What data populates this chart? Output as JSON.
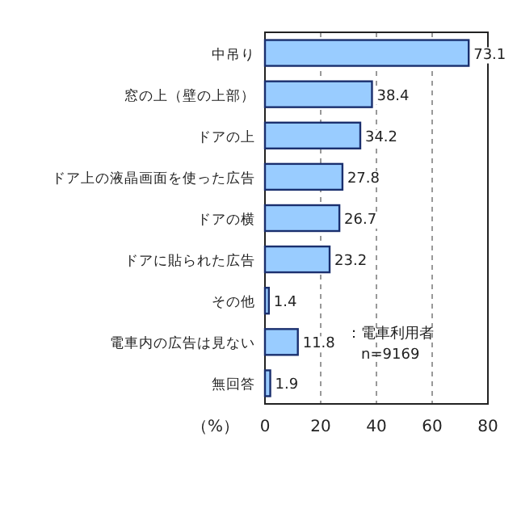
{
  "chart_data": {
    "type": "bar",
    "orientation": "horizontal",
    "categories": [
      "中吊り",
      "窓の上（壁の上部）",
      "ドアの上",
      "ドア上の液晶画面を使った広告",
      "ドアの横",
      "ドアに貼られた広告",
      "その他",
      "電車内の広告は見ない",
      "無回答"
    ],
    "values": [
      73.1,
      38.4,
      34.2,
      27.8,
      26.7,
      23.2,
      1.4,
      11.8,
      1.9
    ],
    "color": "#99ccff",
    "data_labels": true,
    "xlim": [
      0,
      80
    ],
    "xticks": [
      0,
      20,
      40,
      60,
      80
    ],
    "grid": "x",
    "xlabel": "（%）",
    "annotations": [
      "：電車利用者",
      "n=9169"
    ]
  }
}
